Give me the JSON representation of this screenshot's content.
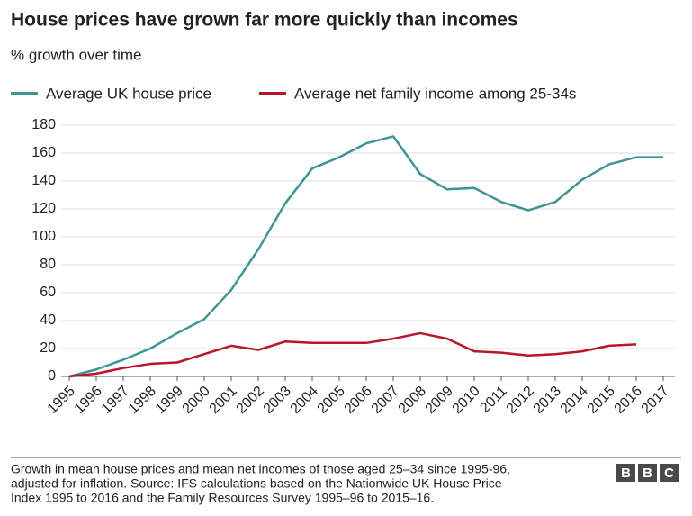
{
  "chart_data": {
    "type": "line",
    "title": "House prices have grown far more quickly than incomes",
    "subtitle": "% growth over time",
    "categories": [
      "1995",
      "1996",
      "1997",
      "1998",
      "1999",
      "2000",
      "2001",
      "2002",
      "2003",
      "2004",
      "2005",
      "2006",
      "2007",
      "2008",
      "2009",
      "2010",
      "2011",
      "2012",
      "2013",
      "2014",
      "2015",
      "2016",
      "2017"
    ],
    "series": [
      {
        "name": "Average UK house price",
        "color": "#3f9596",
        "values": [
          0,
          5,
          12,
          20,
          31,
          41,
          62,
          91,
          124,
          149,
          157,
          167,
          172,
          145,
          134,
          135,
          125,
          119,
          125,
          141,
          152,
          157,
          157
        ]
      },
      {
        "name": "Average net family income among 25-34s",
        "color": "#b8162b",
        "values": [
          0,
          2,
          6,
          9,
          10,
          16,
          22,
          19,
          25,
          24,
          24,
          24,
          27,
          31,
          27,
          18,
          17,
          15,
          16,
          18,
          22,
          23,
          null
        ]
      }
    ],
    "ylim": [
      0,
      180
    ],
    "yticks": [
      0,
      20,
      40,
      60,
      80,
      100,
      120,
      140,
      160,
      180
    ],
    "grid": true,
    "footnote": [
      "Growth in mean house prices and mean net incomes of those aged 25–34 since 1995-96,",
      "adjusted for inflation. Source: IFS calculations based on the Nationwide UK House Price",
      "Index 1995 to 2016 and the Family Resources Survey 1995–96 to 2015–16."
    ],
    "logo": [
      "B",
      "B",
      "C"
    ]
  }
}
